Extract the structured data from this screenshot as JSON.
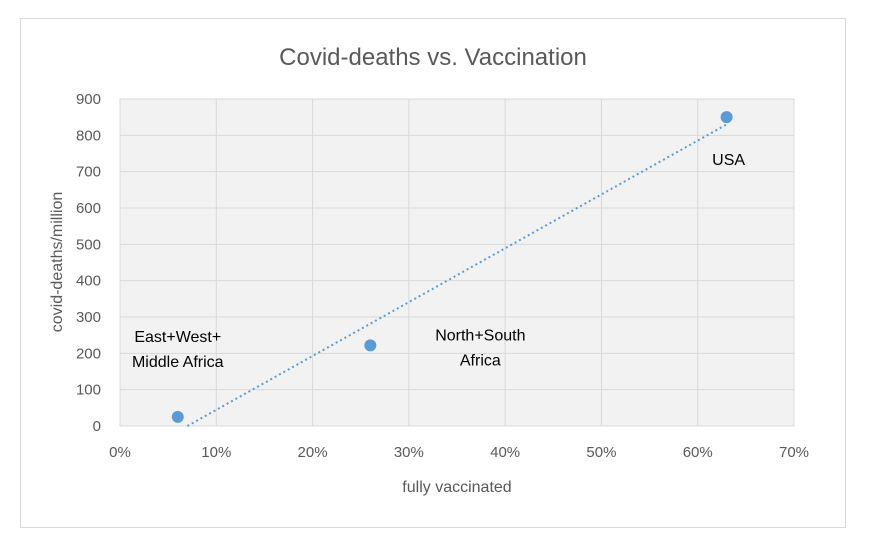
{
  "chart_data": {
    "type": "scatter",
    "title": "Covid-deaths vs. Vaccination",
    "xlabel": "fully vaccinated",
    "ylabel": "covid-deaths/million",
    "xlim": [
      0,
      0.7
    ],
    "ylim": [
      0,
      900
    ],
    "x_ticks": [
      "0%",
      "10%",
      "20%",
      "30%",
      "40%",
      "50%",
      "60%",
      "70%"
    ],
    "y_ticks": [
      "0",
      "100",
      "200",
      "300",
      "400",
      "500",
      "600",
      "700",
      "800",
      "900"
    ],
    "grid": true,
    "marker_color": "#5b9bd5",
    "trendline": {
      "style": "dotted linear",
      "color": "#5b9bd5",
      "from": [
        0.07,
        0
      ],
      "to": [
        0.63,
        830
      ]
    },
    "points": [
      {
        "x": 0.06,
        "y": 25,
        "label_lines": [
          "East+West+",
          "Middle Africa"
        ]
      },
      {
        "x": 0.26,
        "y": 222,
        "label_lines": [
          "North+South",
          "Africa"
        ]
      },
      {
        "x": 0.63,
        "y": 850,
        "label_lines": [
          "USA"
        ]
      }
    ]
  }
}
